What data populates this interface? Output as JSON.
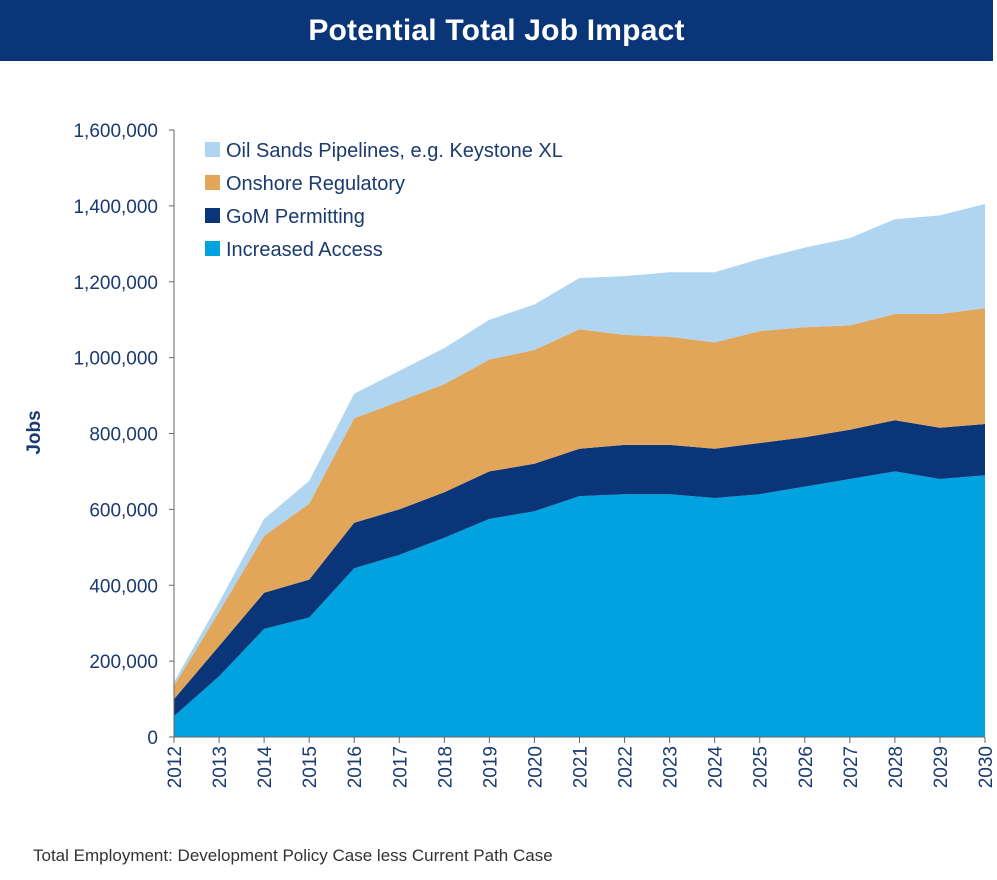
{
  "title": "Potential Total Job Impact",
  "footnote": "Total Employment: Development Policy Case less Current Path Case",
  "colors": {
    "title_bg": "#0a3579",
    "axis_text": "#1a3a70",
    "axis_line": "#666666"
  },
  "chart_data": {
    "type": "area",
    "stacked": true,
    "title": "Potential Total Job Impact",
    "xlabel": "",
    "ylabel": "Jobs",
    "ylim": [
      0,
      1600000
    ],
    "yticks": [
      0,
      200000,
      400000,
      600000,
      800000,
      1000000,
      1200000,
      1400000,
      1600000
    ],
    "ytick_labels": [
      "0",
      "200,000",
      "400,000",
      "600,000",
      "800,000",
      "1,000,000",
      "1,200,000",
      "1,400,000",
      "1,600,000"
    ],
    "categories": [
      "2012",
      "2013",
      "2014",
      "2015",
      "2016",
      "2017",
      "2018",
      "2019",
      "2020",
      "2021",
      "2022",
      "2023",
      "2024",
      "2025",
      "2026",
      "2027",
      "2028",
      "2029",
      "2030"
    ],
    "grid": false,
    "legend_position": "top-left",
    "series": [
      {
        "name": "Increased Access",
        "color": "#00a3e0",
        "values": [
          55000,
          160000,
          285000,
          315000,
          445000,
          480000,
          525000,
          575000,
          595000,
          635000,
          640000,
          640000,
          630000,
          640000,
          660000,
          680000,
          700000,
          680000,
          690000
        ]
      },
      {
        "name": "GoM Permitting",
        "color": "#0a3579",
        "values": [
          45000,
          80000,
          95000,
          100000,
          120000,
          120000,
          120000,
          125000,
          125000,
          125000,
          130000,
          130000,
          130000,
          135000,
          130000,
          130000,
          135000,
          135000,
          135000
        ]
      },
      {
        "name": "Onshore Regulatory",
        "color": "#e2a65a",
        "values": [
          35000,
          90000,
          150000,
          200000,
          275000,
          285000,
          285000,
          295000,
          300000,
          315000,
          290000,
          285000,
          280000,
          295000,
          290000,
          275000,
          280000,
          300000,
          305000
        ]
      },
      {
        "name": "Oil Sands Pipelines, e.g. Keystone XL",
        "color": "#afd5f0",
        "values": [
          10000,
          25000,
          45000,
          60000,
          65000,
          80000,
          95000,
          105000,
          120000,
          135000,
          155000,
          170000,
          185000,
          190000,
          210000,
          230000,
          250000,
          260000,
          275000
        ]
      }
    ],
    "legend_order": [
      "Oil Sands Pipelines, e.g. Keystone XL",
      "Onshore Regulatory",
      "GoM Permitting",
      "Increased Access"
    ]
  }
}
